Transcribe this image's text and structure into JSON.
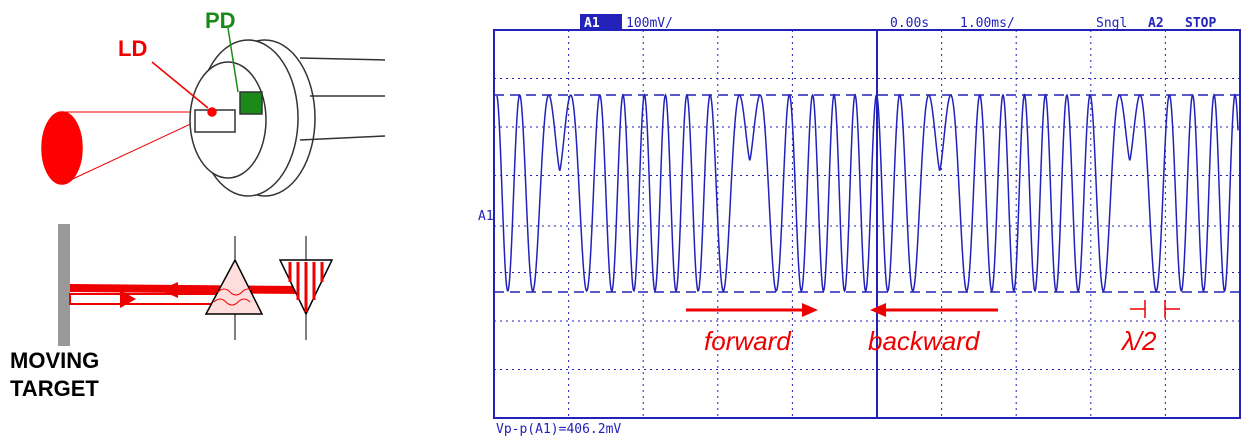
{
  "package": {
    "ld_label": "LD",
    "pd_label": "PD"
  },
  "schematic": {
    "target_line1": "MOVING",
    "target_line2": "TARGET"
  },
  "scope": {
    "channel": "A1",
    "volts_div": "100mV/",
    "time_offset": "0.00s",
    "time_div": "1.00ms/",
    "mode": "Sngl",
    "trigger": "A2",
    "state": "STOP",
    "marker": "A1",
    "measurement": "Vp-p(A1)=406.2mV",
    "forward": "forward",
    "backward": "backward",
    "half_wavelength": "λ/2"
  }
}
